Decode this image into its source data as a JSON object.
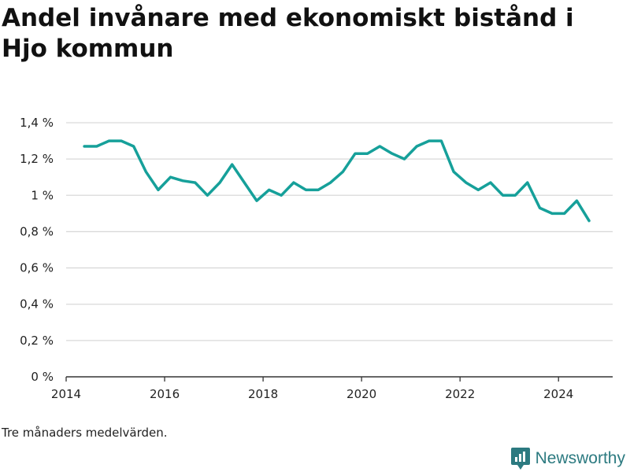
{
  "title": "Andel invånare med ekonomiskt bistånd i Hjo kommun",
  "note": "Tre månaders medelvärden.",
  "brand": "Newsworthy",
  "colors": {
    "line": "#16a09a",
    "grid": "#d9d9d9",
    "axis": "#333333",
    "brand": "#2c7a80"
  },
  "chart_data": {
    "type": "line",
    "title": "Andel invånare med ekonomiskt bistånd i Hjo kommun",
    "xlabel": "",
    "ylabel": "",
    "xlim": [
      2014.0,
      2025.1
    ],
    "ylim": [
      0,
      1.4
    ],
    "x_ticks": [
      2014,
      2016,
      2018,
      2020,
      2022,
      2024
    ],
    "x_tick_labels": [
      "2014",
      "2016",
      "2018",
      "2020",
      "2022",
      "2024"
    ],
    "y_ticks": [
      0,
      0.2,
      0.4,
      0.6,
      0.8,
      1.0,
      1.2,
      1.4
    ],
    "y_tick_labels": [
      "0 %",
      "0,2 %",
      "0,4 %",
      "0,6 %",
      "0,8 %",
      "1 %",
      "1,2 %",
      "1,4 %"
    ],
    "grid": true,
    "series": [
      {
        "x": [
          2014.37,
          2014.62,
          2014.87,
          2015.12,
          2015.37,
          2015.62,
          2015.87,
          2016.12,
          2016.37,
          2016.62,
          2016.87,
          2017.12,
          2017.37,
          2017.62,
          2017.87,
          2018.12,
          2018.37,
          2018.62,
          2018.87,
          2019.12,
          2019.37,
          2019.62,
          2019.87,
          2020.12,
          2020.37,
          2020.62,
          2020.87,
          2021.12,
          2021.37,
          2021.62,
          2021.87,
          2022.12,
          2022.37,
          2022.62,
          2022.87,
          2023.12,
          2023.37,
          2023.62,
          2023.87,
          2024.12,
          2024.37,
          2024.62
        ],
        "y": [
          1.27,
          1.27,
          1.3,
          1.3,
          1.27,
          1.13,
          1.03,
          1.1,
          1.08,
          1.07,
          1.0,
          1.07,
          1.17,
          1.07,
          0.97,
          1.03,
          1.0,
          1.07,
          1.03,
          1.03,
          1.07,
          1.13,
          1.23,
          1.23,
          1.27,
          1.23,
          1.2,
          1.27,
          1.3,
          1.3,
          1.13,
          1.07,
          1.03,
          1.07,
          1.0,
          1.0,
          1.07,
          0.93,
          0.9,
          0.9,
          0.97,
          0.86
        ]
      }
    ]
  }
}
